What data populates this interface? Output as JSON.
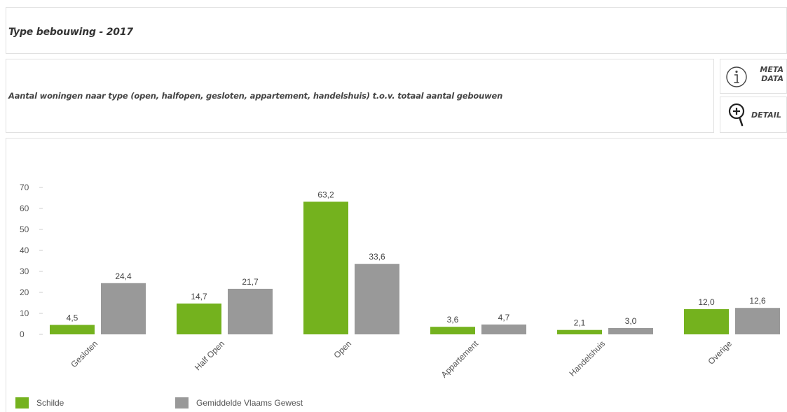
{
  "header": {
    "title": "Type bebouwing - 2017",
    "subtitle": "Aantal woningen naar type (open, halfopen, gesloten, appartement, handelshuis) t.o.v. totaal aantal gebouwen"
  },
  "buttons": {
    "meta_line1": "META",
    "meta_line2": "DATA",
    "detail": "DETAIL"
  },
  "colors": {
    "series_1": "#74b21e",
    "series_2": "#999999"
  },
  "chart_data": {
    "type": "bar",
    "title": "",
    "xlabel": "",
    "ylabel": "",
    "categories": [
      "Gesloten",
      "Half Open",
      "Open",
      "Appartement",
      "Handelshuis",
      "Overige"
    ],
    "series": [
      {
        "name": "Schilde",
        "values": [
          4.5,
          14.7,
          63.2,
          3.6,
          2.1,
          12.0
        ],
        "labels": [
          "4,5",
          "14,7",
          "63,2",
          "3,6",
          "2,1",
          "12,0"
        ]
      },
      {
        "name": "Gemiddelde Vlaams Gewest",
        "values": [
          24.4,
          21.7,
          33.6,
          4.7,
          3.0,
          12.6
        ],
        "labels": [
          "24,4",
          "21,7",
          "33,6",
          "4,7",
          "3,0",
          "12,6"
        ]
      }
    ],
    "ylim": [
      0,
      70
    ],
    "yticks": [
      0,
      10,
      20,
      30,
      40,
      50,
      60,
      70
    ],
    "grid": false,
    "legend": "bottom-left"
  }
}
